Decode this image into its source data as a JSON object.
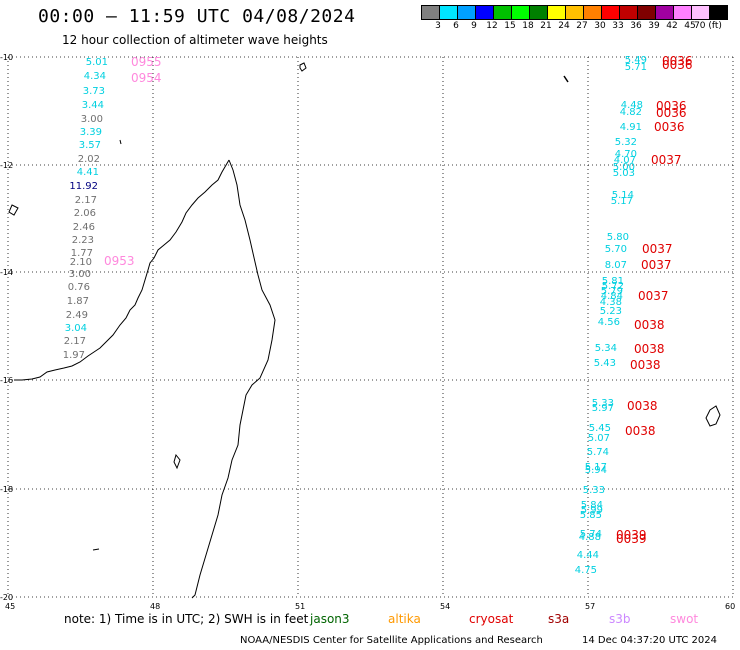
{
  "header": {
    "title": "00:00 — 11:59 UTC 04/08/2024",
    "subtitle": "12 hour collection of altimeter wave heights"
  },
  "colorbar": {
    "swatches": [
      "#808080",
      "#00e5ff",
      "#00a0ff",
      "#0000ff",
      "#00c000",
      "#00ff00",
      "#008000",
      "#ffff00",
      "#ffc000",
      "#ff8000",
      "#ff0000",
      "#c00000",
      "#800000",
      "#a000a0",
      "#ff80ff",
      "#ffc0ff",
      "#000000"
    ],
    "labels": [
      "3",
      "6",
      "9",
      "12",
      "15",
      "18",
      "21",
      "24",
      "27",
      "30",
      "33",
      "36",
      "39",
      "42",
      "45",
      "70 (ft)"
    ]
  },
  "axes": {
    "x_ticks": [
      "45",
      "48",
      "51",
      "54",
      "57",
      "60"
    ],
    "y_ticks": [
      "-10",
      "-12",
      "-14",
      "-16",
      "-18",
      "-20"
    ],
    "xlim": [
      45,
      60
    ],
    "ylim": [
      -20,
      -10
    ]
  },
  "colors": {
    "cyan": "#00d0e0",
    "gray": "#707070",
    "navy": "#000080",
    "pink": "#ff88dd",
    "red": "#e00000",
    "jason": "#006400",
    "altika": "#ff9900",
    "cryosat": "#e00000",
    "s3a": "#a00000",
    "s3b": "#cc88ff",
    "swot": "#ff88dd"
  },
  "track_west": [
    {
      "v": "5.01",
      "c": "cyan"
    },
    {
      "v": "4.34",
      "c": "cyan"
    },
    {
      "v": "3.73",
      "c": "cyan"
    },
    {
      "v": "3.44",
      "c": "cyan"
    },
    {
      "v": "3.00",
      "c": "gray"
    },
    {
      "v": "3.39",
      "c": "cyan"
    },
    {
      "v": "3.57",
      "c": "cyan"
    },
    {
      "v": "2.02",
      "c": "gray"
    },
    {
      "v": "4.41",
      "c": "cyan"
    },
    {
      "v": "11.92",
      "c": "navy"
    },
    {
      "v": "2.17",
      "c": "gray"
    },
    {
      "v": "2.06",
      "c": "gray"
    },
    {
      "v": "2.46",
      "c": "gray"
    },
    {
      "v": "2.23",
      "c": "gray"
    },
    {
      "v": "1.77",
      "c": "gray"
    },
    {
      "v": "2.10",
      "c": "gray"
    },
    {
      "v": "3.00",
      "c": "gray"
    },
    {
      "v": "0.76",
      "c": "gray"
    },
    {
      "v": "1.87",
      "c": "gray"
    },
    {
      "v": "2.49",
      "c": "gray"
    },
    {
      "v": "3.04",
      "c": "cyan"
    },
    {
      "v": "2.17",
      "c": "gray"
    },
    {
      "v": "1.97",
      "c": "gray"
    }
  ],
  "time_west": [
    "0955",
    "0954",
    "0953"
  ],
  "track_east": [
    {
      "v": "5.49",
      "c": "cyan"
    },
    {
      "v": "5.71",
      "c": "cyan"
    },
    {
      "v": "4.48",
      "c": "cyan"
    },
    {
      "v": "4.82",
      "c": "cyan"
    },
    {
      "v": "4.91",
      "c": "cyan"
    },
    {
      "v": "5.32",
      "c": "cyan"
    },
    {
      "v": "4.70",
      "c": "cyan"
    },
    {
      "v": "4.07",
      "c": "cyan"
    },
    {
      "v": "5.00",
      "c": "cyan"
    },
    {
      "v": "5.03",
      "c": "cyan"
    },
    {
      "v": "5.14",
      "c": "cyan"
    },
    {
      "v": "5.17",
      "c": "cyan"
    },
    {
      "v": "5.80",
      "c": "cyan"
    },
    {
      "v": "5.70",
      "c": "cyan"
    },
    {
      "v": "8.07",
      "c": "cyan"
    },
    {
      "v": "5.81",
      "c": "cyan"
    },
    {
      "v": "5.72",
      "c": "cyan"
    },
    {
      "v": "5.79",
      "c": "cyan"
    },
    {
      "v": "4.84",
      "c": "cyan"
    },
    {
      "v": "4.38",
      "c": "cyan"
    },
    {
      "v": "5.23",
      "c": "cyan"
    },
    {
      "v": "4.56",
      "c": "cyan"
    },
    {
      "v": "5.34",
      "c": "cyan"
    },
    {
      "v": "5.43",
      "c": "cyan"
    },
    {
      "v": "5.33",
      "c": "cyan"
    },
    {
      "v": "5.97",
      "c": "cyan"
    },
    {
      "v": "5.45",
      "c": "cyan"
    },
    {
      "v": "5.07",
      "c": "cyan"
    },
    {
      "v": "5.74",
      "c": "cyan"
    },
    {
      "v": "5.17",
      "c": "cyan"
    },
    {
      "v": "5.94",
      "c": "cyan"
    },
    {
      "v": "5.33",
      "c": "cyan"
    },
    {
      "v": "5.84",
      "c": "cyan"
    },
    {
      "v": "5.99",
      "c": "cyan"
    },
    {
      "v": "5.85",
      "c": "cyan"
    },
    {
      "v": "5.74",
      "c": "cyan"
    },
    {
      "v": "4.88",
      "c": "cyan"
    },
    {
      "v": "4.44",
      "c": "cyan"
    },
    {
      "v": "4.75",
      "c": "cyan"
    }
  ],
  "time_east": [
    "0036",
    "0036",
    "0036",
    "0036",
    "0036",
    "0037",
    "0037",
    "0037",
    "0037",
    "0038",
    "0038",
    "0038",
    "0038",
    "0038",
    "0039",
    "0039"
  ],
  "footer": {
    "note": "note: 1) Time is in UTC; 2) SWH is in feet",
    "legend": [
      "jason3",
      "altika",
      "cryosat",
      "s3a",
      "s3b",
      "swot"
    ],
    "credit": "NOAA/NESDIS Center for Satellite Applications and Research",
    "generated": "14 Dec 04:37:20 UTC 2024"
  }
}
